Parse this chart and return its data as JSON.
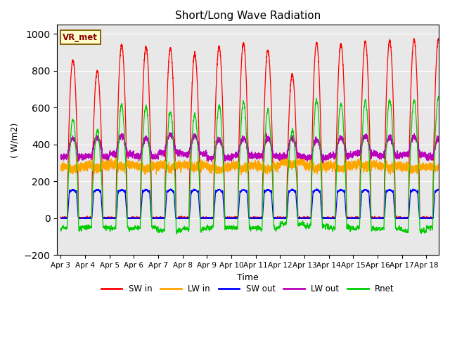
{
  "title": "Short/Long Wave Radiation",
  "xlabel": "Time",
  "ylabel": "( W/m2)",
  "ylim": [
    -200,
    1050
  ],
  "yticks": [
    -200,
    0,
    200,
    400,
    600,
    800,
    1000
  ],
  "xtick_labels": [
    "Apr 3",
    "Apr 4",
    "Apr 5",
    "Apr 6",
    "Apr 7",
    "Apr 8",
    "Apr 9",
    "Apr 10",
    "Apr 11",
    "Apr 12",
    "Apr 13",
    "Apr 14",
    "Apr 15",
    "Apr 16",
    "Apr 17",
    "Apr 18"
  ],
  "xtick_positions": [
    0,
    1,
    2,
    3,
    4,
    5,
    6,
    7,
    8,
    9,
    10,
    11,
    12,
    13,
    14,
    15
  ],
  "annotation_text": "VR_met",
  "bg_color": "#e8e8e8",
  "line_colors": {
    "SW_in": "#ff0000",
    "LW_in": "#ffa500",
    "SW_out": "#0000ff",
    "LW_out": "#bb00bb",
    "Rnet": "#00cc00"
  },
  "legend_labels": [
    "SW in",
    "LW in",
    "SW out",
    "LW out",
    "Rnet"
  ],
  "n_days": 16,
  "pts_per_day": 288,
  "sw_in_peaks": [
    860,
    800,
    940,
    930,
    920,
    890,
    930,
    950,
    910,
    780,
    950,
    945,
    960,
    965,
    970,
    970
  ],
  "sw_out_peak": 155,
  "lw_in_base": 285,
  "lw_out_base": 345,
  "rnet_night": -80
}
